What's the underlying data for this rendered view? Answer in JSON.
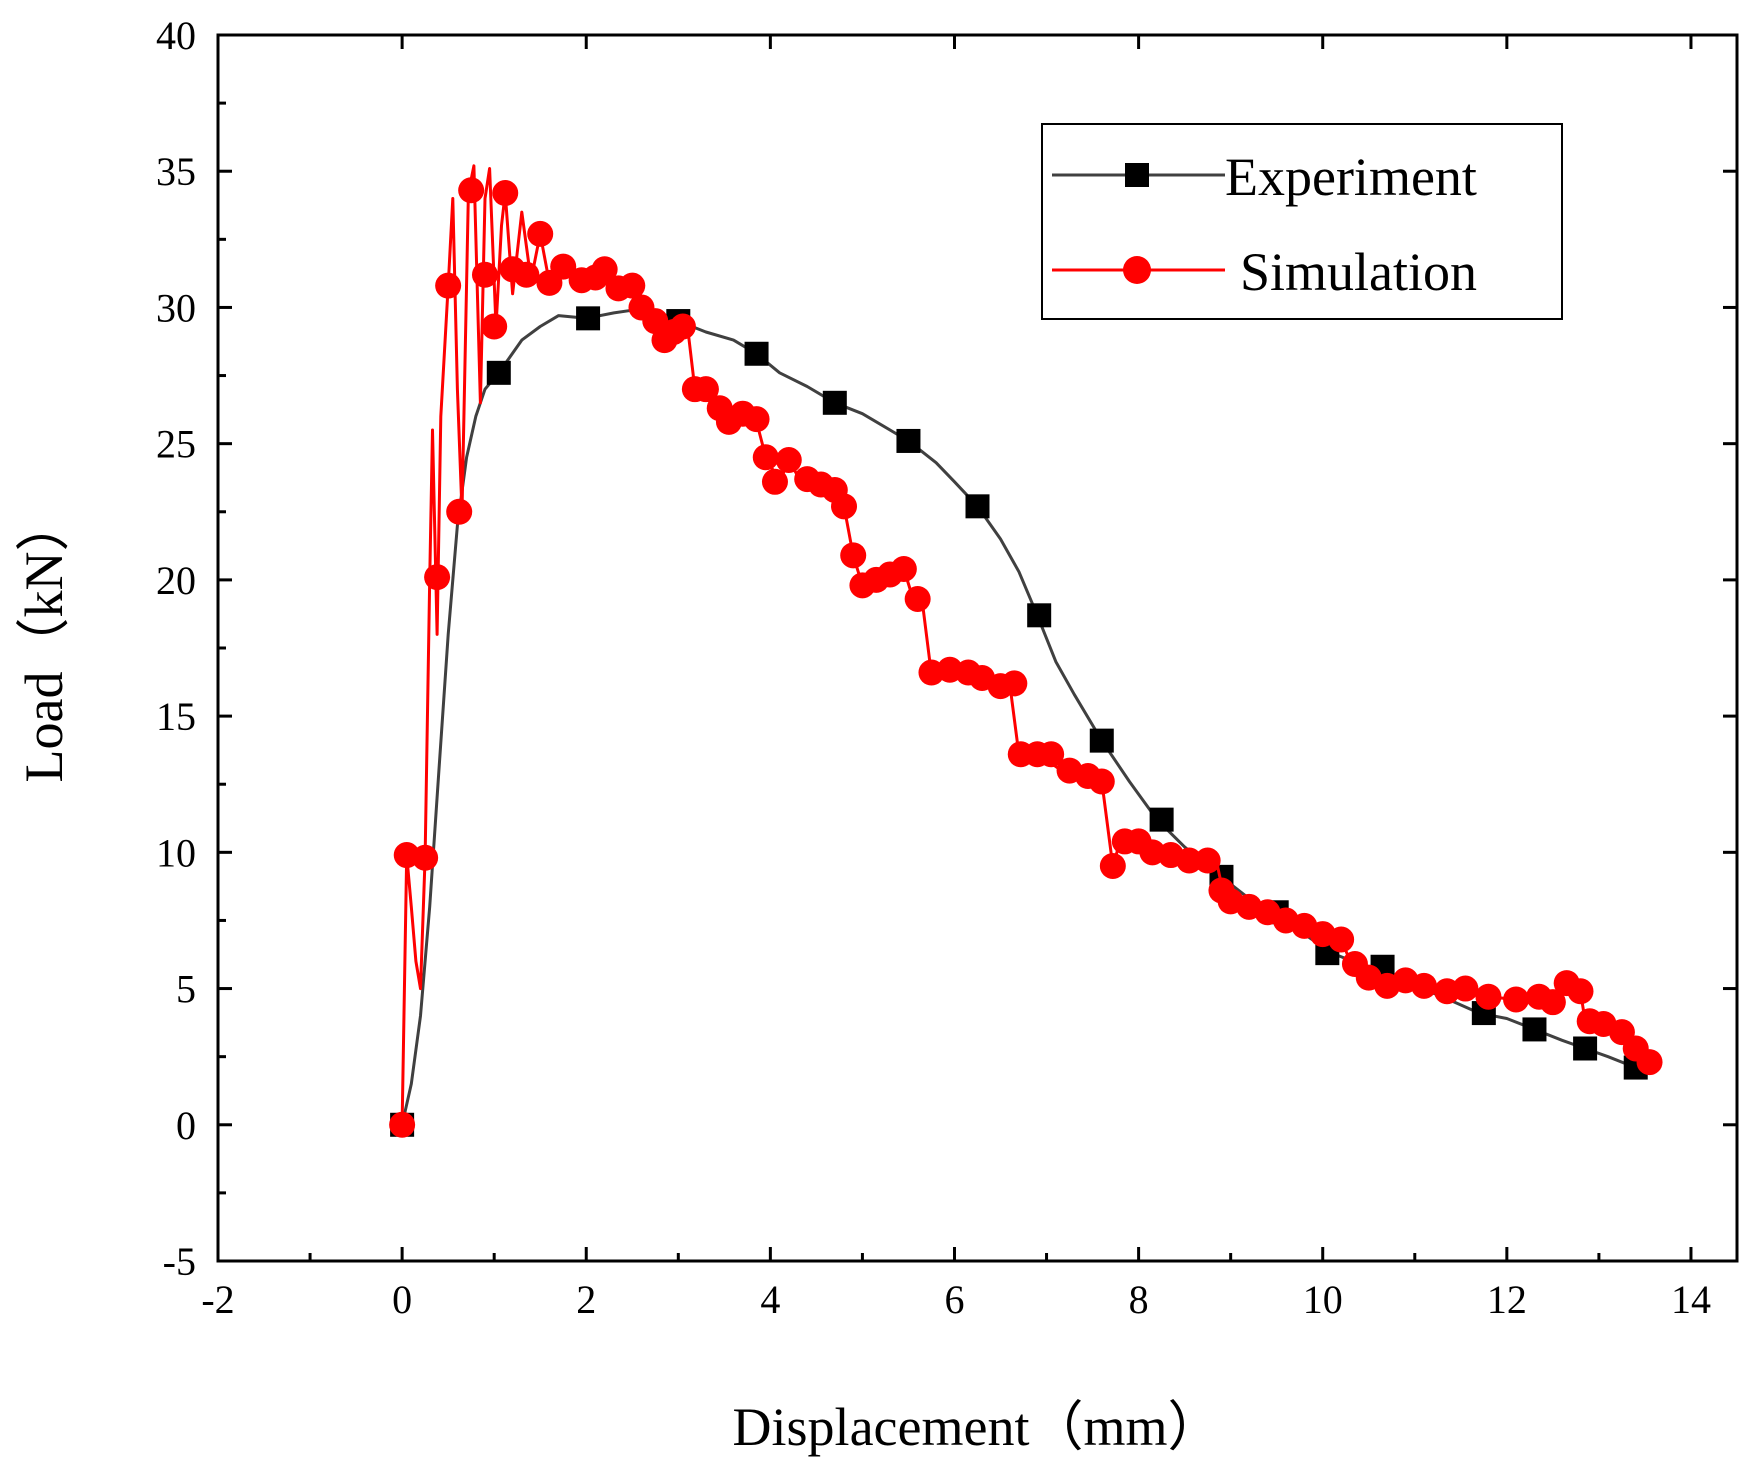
{
  "chart_data": {
    "type": "line",
    "title": "",
    "xlabel": "Displacement（mm）",
    "ylabel": "Load（kN）",
    "xlim": [
      -2,
      14.5
    ],
    "ylim": [
      -5,
      40
    ],
    "xticks": [
      -2,
      0,
      2,
      4,
      6,
      8,
      10,
      12,
      14
    ],
    "yticks": [
      -5,
      0,
      5,
      10,
      15,
      20,
      25,
      30,
      35,
      40
    ],
    "grid": false,
    "legend": {
      "position": "top-right",
      "entries": [
        "Experiment",
        "Simulation"
      ]
    },
    "series": [
      {
        "name": "Experiment",
        "color": "#000000",
        "line_color": "#404040",
        "marker": "square",
        "curve": [
          [
            0,
            0
          ],
          [
            0.1,
            1.5
          ],
          [
            0.2,
            4
          ],
          [
            0.3,
            8
          ],
          [
            0.4,
            13
          ],
          [
            0.5,
            18
          ],
          [
            0.6,
            22
          ],
          [
            0.7,
            24.5
          ],
          [
            0.8,
            26
          ],
          [
            0.9,
            27
          ],
          [
            1.05,
            27.6
          ],
          [
            1.3,
            28.8
          ],
          [
            1.5,
            29.3
          ],
          [
            1.7,
            29.7
          ],
          [
            2.0,
            29.6
          ],
          [
            2.3,
            29.8
          ],
          [
            2.5,
            29.9
          ],
          [
            2.8,
            29.6
          ],
          [
            3.0,
            29.5
          ],
          [
            3.3,
            29.1
          ],
          [
            3.6,
            28.8
          ],
          [
            3.85,
            28.3
          ],
          [
            4.1,
            27.6
          ],
          [
            4.4,
            27.1
          ],
          [
            4.7,
            26.5
          ],
          [
            5.0,
            26.1
          ],
          [
            5.3,
            25.5
          ],
          [
            5.5,
            25.1
          ],
          [
            5.8,
            24.3
          ],
          [
            6.0,
            23.6
          ],
          [
            6.25,
            22.7
          ],
          [
            6.5,
            21.5
          ],
          [
            6.7,
            20.3
          ],
          [
            6.9,
            18.7
          ],
          [
            7.1,
            17
          ],
          [
            7.3,
            15.8
          ],
          [
            7.6,
            14.1
          ],
          [
            7.9,
            12.6
          ],
          [
            8.2,
            11.2
          ],
          [
            8.5,
            10.2
          ],
          [
            8.9,
            9.1
          ],
          [
            9.2,
            8.3
          ],
          [
            9.5,
            7.7
          ],
          [
            9.8,
            7.0
          ],
          [
            10.1,
            6.3
          ],
          [
            10.4,
            5.9
          ],
          [
            10.7,
            5.6
          ],
          [
            11.0,
            5.1
          ],
          [
            11.3,
            4.7
          ],
          [
            11.7,
            4.1
          ],
          [
            12.0,
            3.9
          ],
          [
            12.3,
            3.5
          ],
          [
            12.6,
            3.1
          ],
          [
            12.85,
            2.8
          ],
          [
            13.1,
            2.5
          ],
          [
            13.4,
            2.1
          ]
        ],
        "points": [
          [
            0,
            0
          ],
          [
            1.05,
            27.6
          ],
          [
            2.02,
            29.6
          ],
          [
            3.0,
            29.5
          ],
          [
            3.85,
            28.3
          ],
          [
            4.7,
            26.5
          ],
          [
            5.5,
            25.1
          ],
          [
            6.25,
            22.7
          ],
          [
            6.92,
            18.7
          ],
          [
            7.6,
            14.1
          ],
          [
            8.25,
            11.2
          ],
          [
            8.9,
            9.1
          ],
          [
            9.5,
            7.8
          ],
          [
            10.05,
            6.3
          ],
          [
            10.65,
            5.8
          ],
          [
            11.75,
            4.1
          ],
          [
            12.3,
            3.5
          ],
          [
            12.85,
            2.8
          ],
          [
            13.4,
            2.1
          ]
        ]
      },
      {
        "name": "Simulation",
        "color": "#ff0000",
        "marker": "circle",
        "curve": [
          [
            0,
            0
          ],
          [
            0.05,
            9.9
          ],
          [
            0.1,
            8
          ],
          [
            0.15,
            6
          ],
          [
            0.2,
            5
          ],
          [
            0.25,
            9.8
          ],
          [
            0.3,
            20
          ],
          [
            0.33,
            25.5
          ],
          [
            0.38,
            18
          ],
          [
            0.42,
            26
          ],
          [
            0.5,
            30.8
          ],
          [
            0.55,
            34
          ],
          [
            0.6,
            27
          ],
          [
            0.65,
            22.5
          ],
          [
            0.72,
            34.2
          ],
          [
            0.78,
            35.2
          ],
          [
            0.85,
            26.5
          ],
          [
            0.9,
            34
          ],
          [
            0.95,
            35.1
          ],
          [
            1.02,
            29.3
          ],
          [
            1.08,
            33
          ],
          [
            1.12,
            34.2
          ],
          [
            1.2,
            30.5
          ],
          [
            1.3,
            33.5
          ],
          [
            1.4,
            31
          ],
          [
            1.5,
            32.7
          ],
          [
            1.6,
            30.9
          ],
          [
            1.7,
            31.6
          ],
          [
            1.8,
            31.2
          ],
          [
            1.9,
            31.1
          ],
          [
            2.0,
            30.7
          ],
          [
            2.1,
            31.2
          ],
          [
            2.2,
            31.4
          ],
          [
            2.3,
            30.7
          ],
          [
            2.45,
            30.6
          ],
          [
            2.55,
            30.8
          ],
          [
            2.65,
            29.9
          ],
          [
            2.8,
            29.4
          ],
          [
            2.9,
            28.8
          ],
          [
            3.0,
            29.2
          ],
          [
            3.1,
            29.3
          ],
          [
            3.18,
            27
          ],
          [
            3.3,
            26.9
          ],
          [
            3.45,
            26.2
          ],
          [
            3.6,
            25.8
          ],
          [
            3.75,
            26.1
          ],
          [
            3.85,
            25.8
          ],
          [
            3.95,
            24.5
          ],
          [
            4.1,
            23.6
          ],
          [
            4.2,
            24.4
          ],
          [
            4.3,
            23.8
          ],
          [
            4.5,
            23.5
          ],
          [
            4.7,
            23.3
          ],
          [
            4.8,
            22.7
          ],
          [
            4.9,
            20.9
          ],
          [
            5.0,
            19.8
          ],
          [
            5.15,
            20.1
          ],
          [
            5.3,
            20.2
          ],
          [
            5.45,
            20.4
          ],
          [
            5.55,
            19.3
          ],
          [
            5.65,
            19.2
          ],
          [
            5.75,
            16.5
          ],
          [
            5.9,
            16.5
          ],
          [
            6.05,
            16.8
          ],
          [
            6.2,
            16.5
          ],
          [
            6.35,
            16.3
          ],
          [
            6.5,
            16
          ],
          [
            6.6,
            16.2
          ],
          [
            6.7,
            13.6
          ],
          [
            6.85,
            13.5
          ],
          [
            7.0,
            13.4
          ],
          [
            7.2,
            12.9
          ],
          [
            7.4,
            12.8
          ],
          [
            7.6,
            12.6
          ],
          [
            7.72,
            9.5
          ],
          [
            7.8,
            10.4
          ],
          [
            7.95,
            10.5
          ],
          [
            8.1,
            10.0
          ],
          [
            8.3,
            9.9
          ],
          [
            8.5,
            9.8
          ],
          [
            8.7,
            9.8
          ],
          [
            8.85,
            9.6
          ],
          [
            8.92,
            8.5
          ],
          [
            9.0,
            8.2
          ],
          [
            9.2,
            8.0
          ],
          [
            9.4,
            7.8
          ],
          [
            9.6,
            7.6
          ],
          [
            9.8,
            7.3
          ],
          [
            10.0,
            7.0
          ],
          [
            10.2,
            6.8
          ],
          [
            10.3,
            6.0
          ],
          [
            10.5,
            5.5
          ],
          [
            10.7,
            5.2
          ],
          [
            10.9,
            5.3
          ],
          [
            11.2,
            5.1
          ],
          [
            11.5,
            4.9
          ],
          [
            11.8,
            4.7
          ],
          [
            12.1,
            4.6
          ],
          [
            12.35,
            4.8
          ],
          [
            12.5,
            4.7
          ],
          [
            12.65,
            5.2
          ],
          [
            12.8,
            4.9
          ],
          [
            12.85,
            3.8
          ],
          [
            13.0,
            3.7
          ],
          [
            13.2,
            3.5
          ],
          [
            13.4,
            2.8
          ],
          [
            13.55,
            2.3
          ]
        ],
        "points": [
          [
            0,
            0
          ],
          [
            0.05,
            9.9
          ],
          [
            0.25,
            9.8
          ],
          [
            0.38,
            20.1
          ],
          [
            0.5,
            30.8
          ],
          [
            0.62,
            22.5
          ],
          [
            0.75,
            34.3
          ],
          [
            0.9,
            31.2
          ],
          [
            1.0,
            29.3
          ],
          [
            1.12,
            34.2
          ],
          [
            1.2,
            31.4
          ],
          [
            1.35,
            31.2
          ],
          [
            1.5,
            32.7
          ],
          [
            1.6,
            30.9
          ],
          [
            1.75,
            31.5
          ],
          [
            1.95,
            31.0
          ],
          [
            2.1,
            31.1
          ],
          [
            2.2,
            31.4
          ],
          [
            2.35,
            30.7
          ],
          [
            2.5,
            30.8
          ],
          [
            2.6,
            30.0
          ],
          [
            2.75,
            29.5
          ],
          [
            2.85,
            28.8
          ],
          [
            2.95,
            29.1
          ],
          [
            3.05,
            29.3
          ],
          [
            3.18,
            27.0
          ],
          [
            3.3,
            27.0
          ],
          [
            3.45,
            26.3
          ],
          [
            3.55,
            25.8
          ],
          [
            3.7,
            26.1
          ],
          [
            3.85,
            25.9
          ],
          [
            3.95,
            24.5
          ],
          [
            4.05,
            23.6
          ],
          [
            4.2,
            24.4
          ],
          [
            4.4,
            23.7
          ],
          [
            4.55,
            23.5
          ],
          [
            4.7,
            23.3
          ],
          [
            4.8,
            22.7
          ],
          [
            4.9,
            20.9
          ],
          [
            5.0,
            19.8
          ],
          [
            5.15,
            20.0
          ],
          [
            5.3,
            20.2
          ],
          [
            5.45,
            20.4
          ],
          [
            5.6,
            19.3
          ],
          [
            5.75,
            16.6
          ],
          [
            5.95,
            16.7
          ],
          [
            6.15,
            16.6
          ],
          [
            6.3,
            16.4
          ],
          [
            6.5,
            16.1
          ],
          [
            6.65,
            16.2
          ],
          [
            6.72,
            13.6
          ],
          [
            6.9,
            13.6
          ],
          [
            7.05,
            13.6
          ],
          [
            7.25,
            13.0
          ],
          [
            7.45,
            12.8
          ],
          [
            7.6,
            12.6
          ],
          [
            7.72,
            9.5
          ],
          [
            7.85,
            10.4
          ],
          [
            8.0,
            10.4
          ],
          [
            8.15,
            10.0
          ],
          [
            8.35,
            9.9
          ],
          [
            8.55,
            9.7
          ],
          [
            8.75,
            9.7
          ],
          [
            8.9,
            8.6
          ],
          [
            9.0,
            8.2
          ],
          [
            9.2,
            8.0
          ],
          [
            9.4,
            7.8
          ],
          [
            9.6,
            7.5
          ],
          [
            9.8,
            7.3
          ],
          [
            10.0,
            7.0
          ],
          [
            10.2,
            6.8
          ],
          [
            10.35,
            5.9
          ],
          [
            10.5,
            5.4
          ],
          [
            10.7,
            5.1
          ],
          [
            10.9,
            5.3
          ],
          [
            11.1,
            5.1
          ],
          [
            11.35,
            4.9
          ],
          [
            11.55,
            5.0
          ],
          [
            11.8,
            4.7
          ],
          [
            12.1,
            4.6
          ],
          [
            12.35,
            4.7
          ],
          [
            12.5,
            4.5
          ],
          [
            12.65,
            5.2
          ],
          [
            12.8,
            4.9
          ],
          [
            12.9,
            3.8
          ],
          [
            13.05,
            3.7
          ],
          [
            13.25,
            3.4
          ],
          [
            13.4,
            2.8
          ],
          [
            13.55,
            2.3
          ]
        ]
      }
    ]
  }
}
